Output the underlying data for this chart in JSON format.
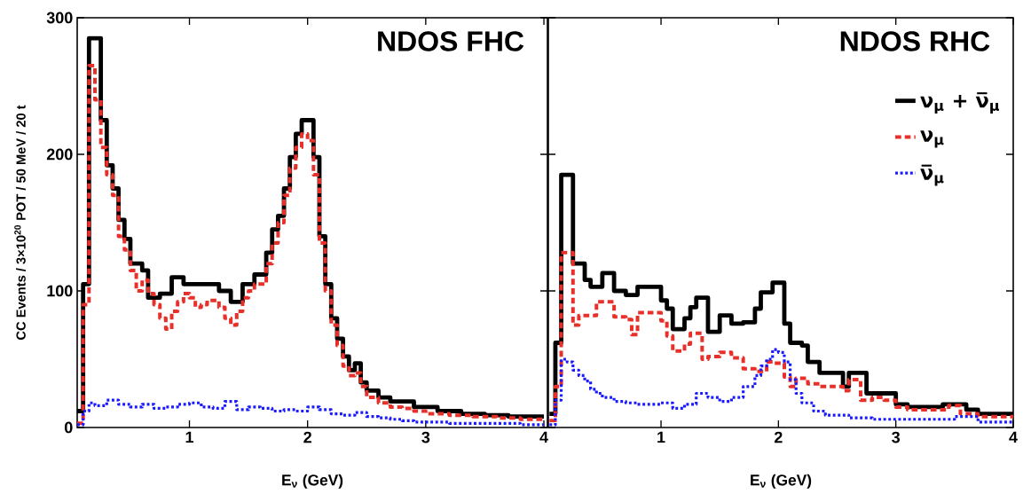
{
  "chart_data": [
    {
      "type": "step",
      "title": "NDOS FHC",
      "xlabel": "E$_{ν}$ (GeV)",
      "ylabel": "CC Events / 3×10$^{20}$ POT / 50 MeV / 20 t",
      "xlim": [
        0.05,
        4.03
      ],
      "ylim": [
        0,
        300
      ],
      "xticks": [
        1,
        2,
        3,
        4
      ],
      "yticks": [
        0,
        100,
        200,
        300
      ],
      "grid": false,
      "legend": false,
      "series": [
        {
          "color": "#000000",
          "line_style": "solid",
          "x": [
            0.05,
            0.1,
            0.15,
            0.25,
            0.3,
            0.35,
            0.4,
            0.45,
            0.5,
            0.6,
            0.65,
            0.75,
            0.85,
            0.95,
            1.05,
            1.15,
            1.25,
            1.35,
            1.45,
            1.55,
            1.65,
            1.7,
            1.75,
            1.8,
            1.85,
            1.9,
            1.95,
            2.05,
            2.1,
            2.15,
            2.2,
            2.25,
            2.3,
            2.35,
            2.4,
            2.45,
            2.5,
            2.6,
            2.7,
            2.9,
            3.1,
            3.3,
            3.5,
            3.7,
            4.0
          ],
          "values": [
            12,
            105,
            285,
            225,
            192,
            175,
            152,
            138,
            120,
            115,
            95,
            98,
            110,
            105,
            105,
            105,
            100,
            92,
            105,
            112,
            128,
            145,
            155,
            175,
            198,
            215,
            225,
            198,
            140,
            105,
            80,
            65,
            52,
            42,
            47,
            33,
            27,
            22,
            19,
            15,
            12,
            10,
            9,
            8,
            8
          ]
        },
        {
          "color": "#e8302a",
          "line_style": "dashed",
          "x": [
            0.05,
            0.1,
            0.15,
            0.2,
            0.25,
            0.3,
            0.35,
            0.4,
            0.45,
            0.5,
            0.55,
            0.6,
            0.65,
            0.7,
            0.75,
            0.8,
            0.85,
            0.9,
            0.95,
            1.0,
            1.05,
            1.1,
            1.15,
            1.25,
            1.3,
            1.35,
            1.4,
            1.45,
            1.5,
            1.55,
            1.65,
            1.7,
            1.75,
            1.8,
            1.85,
            1.9,
            1.95,
            2.0,
            2.05,
            2.1,
            2.15,
            2.2,
            2.25,
            2.3,
            2.35,
            2.4,
            2.45,
            2.5,
            2.6,
            2.7,
            2.8,
            2.9,
            3.0,
            3.2,
            3.4,
            3.6,
            3.8,
            4.0
          ],
          "values": [
            3,
            90,
            265,
            240,
            205,
            185,
            170,
            140,
            130,
            115,
            100,
            108,
            98,
            90,
            80,
            72,
            85,
            92,
            98,
            95,
            88,
            90,
            93,
            88,
            80,
            75,
            85,
            95,
            100,
            105,
            120,
            135,
            150,
            170,
            190,
            205,
            215,
            210,
            185,
            135,
            100,
            75,
            60,
            45,
            38,
            40,
            30,
            22,
            18,
            15,
            14,
            12,
            10,
            9,
            8,
            7,
            6,
            6
          ]
        },
        {
          "color": "#1a1aff",
          "line_style": "dotted",
          "x": [
            0.05,
            0.1,
            0.15,
            0.2,
            0.3,
            0.4,
            0.5,
            0.6,
            0.7,
            0.8,
            0.9,
            1.0,
            1.1,
            1.2,
            1.3,
            1.4,
            1.5,
            1.6,
            1.7,
            1.8,
            1.9,
            2.0,
            2.1,
            2.2,
            2.3,
            2.4,
            2.5,
            2.6,
            2.7,
            2.8,
            2.9,
            3.0,
            3.2,
            3.5,
            3.8,
            4.0
          ],
          "values": [
            2,
            12,
            18,
            16,
            20,
            17,
            15,
            17,
            14,
            15,
            17,
            18,
            15,
            14,
            19,
            13,
            15,
            14,
            12,
            13,
            12,
            15,
            13,
            10,
            9,
            11,
            8,
            7,
            6,
            5,
            4,
            4,
            3,
            3,
            2,
            2
          ]
        }
      ]
    },
    {
      "type": "step",
      "title": "NDOS RHC",
      "xlabel": "E$_{ν}$ (GeV)",
      "xlim": [
        0.04,
        4.0
      ],
      "ylim": [
        0,
        300
      ],
      "xticks": [
        1,
        2,
        3,
        4
      ],
      "yticks": [
        0,
        100,
        200,
        300
      ],
      "tick_labels": "x",
      "grid": false,
      "legend": "right",
      "series": [
        {
          "name": "ν$_{μ}$ + ν̅$_{μ}$",
          "color": "#000000",
          "line_style": "solid",
          "x": [
            0.05,
            0.1,
            0.15,
            0.25,
            0.35,
            0.4,
            0.5,
            0.6,
            0.7,
            0.8,
            1.0,
            1.05,
            1.1,
            1.2,
            1.25,
            1.3,
            1.4,
            1.5,
            1.6,
            1.7,
            1.8,
            1.85,
            1.95,
            2.05,
            2.1,
            2.2,
            2.25,
            2.35,
            2.45,
            2.55,
            2.6,
            2.75,
            3.0,
            3.1,
            3.4,
            3.6,
            3.7,
            4.0
          ],
          "values": [
            10,
            62,
            185,
            120,
            108,
            103,
            113,
            100,
            97,
            103,
            93,
            87,
            72,
            80,
            88,
            95,
            70,
            82,
            76,
            77,
            87,
            99,
            106,
            76,
            62,
            60,
            48,
            40,
            40,
            30,
            40,
            25,
            17,
            15,
            17,
            13,
            10,
            10
          ]
        },
        {
          "name": "ν$_{μ}$",
          "color": "#e8302a",
          "line_style": "dashed",
          "x": [
            0.05,
            0.1,
            0.15,
            0.25,
            0.3,
            0.45,
            0.6,
            0.7,
            0.75,
            0.8,
            1.0,
            1.05,
            1.1,
            1.2,
            1.25,
            1.35,
            1.4,
            1.5,
            1.6,
            1.7,
            1.8,
            1.9,
            1.95,
            2.05,
            2.1,
            2.15,
            2.25,
            2.35,
            2.55,
            2.6,
            2.7,
            2.8,
            2.9,
            3.0,
            3.1,
            3.45,
            3.55,
            3.7,
            4.0
          ],
          "values": [
            5,
            30,
            128,
            75,
            82,
            92,
            81,
            79,
            68,
            84,
            78,
            67,
            56,
            61,
            69,
            50,
            52,
            55,
            51,
            43,
            41,
            48,
            47,
            37,
            30,
            36,
            32,
            30,
            27,
            35,
            20,
            22,
            20,
            15,
            13,
            16,
            10,
            8,
            8
          ]
        },
        {
          "name": "ν̅$_{μ}$",
          "color": "#1a1aff",
          "line_style": "dotted",
          "x": [
            0.05,
            0.1,
            0.15,
            0.2,
            0.25,
            0.3,
            0.35,
            0.4,
            0.45,
            0.5,
            0.6,
            0.7,
            0.8,
            1.0,
            1.1,
            1.2,
            1.3,
            1.4,
            1.5,
            1.6,
            1.7,
            1.8,
            1.85,
            1.9,
            1.95,
            2.0,
            2.05,
            2.1,
            2.15,
            2.2,
            2.3,
            2.4,
            2.6,
            2.8,
            3.5,
            3.7,
            4.0
          ],
          "values": [
            2,
            20,
            50,
            48,
            42,
            38,
            34,
            28,
            25,
            22,
            19,
            18,
            17,
            18,
            14,
            17,
            25,
            22,
            19,
            22,
            30,
            38,
            45,
            50,
            57,
            55,
            48,
            35,
            25,
            18,
            12,
            9,
            7,
            6,
            8,
            4,
            4
          ]
        }
      ]
    }
  ]
}
